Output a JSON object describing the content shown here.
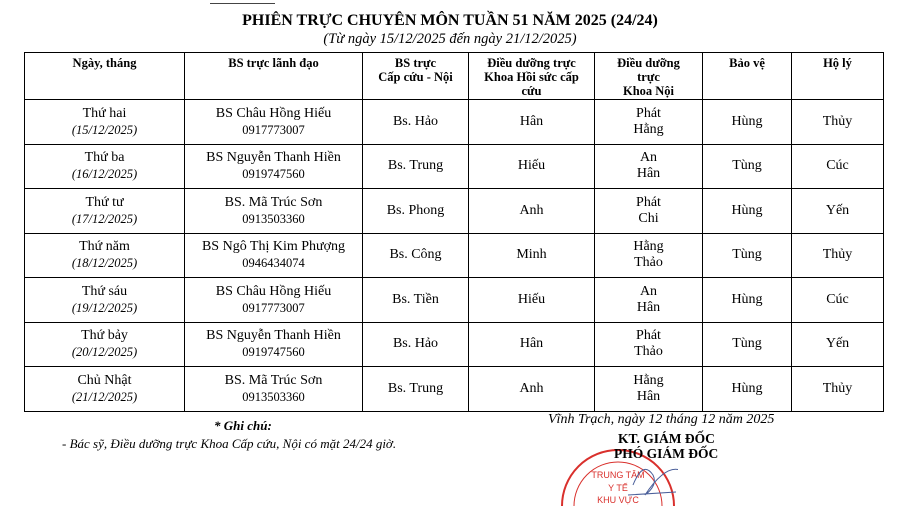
{
  "title": "PHIÊN TRỰC CHUYÊN MÔN TUẦN 51 NĂM 2025 (24/24)",
  "subtitle": "(Từ ngày 15/12/2025 đến ngày 21/12/2025)",
  "headers": [
    "Ngày, tháng",
    "BS trực lãnh đạo",
    "BS trực\nCấp cứu - Nội",
    "Điều dưỡng trực\nKhoa Hồi sức cấp\ncứu",
    "Điều dưỡng\ntrực\nKhoa Nội",
    "Bảo vệ",
    "Hộ lý"
  ],
  "rows": [
    {
      "day": "Thứ hai",
      "date": "(15/12/2025)",
      "leader": "BS Châu Hồng Hiếu",
      "phone": "0917773007",
      "er": "Bs. Hảo",
      "icu": "Hân",
      "nurse1": "Phát",
      "nurse2": "Hằng",
      "guard": "Hùng",
      "aide": "Thủy"
    },
    {
      "day": "Thứ ba",
      "date": "(16/12/2025)",
      "leader": "BS Nguyễn Thanh Hiền",
      "phone": "0919747560",
      "er": "Bs. Trung",
      "icu": "Hiếu",
      "nurse1": "An",
      "nurse2": "Hân",
      "guard": "Tùng",
      "aide": "Cúc"
    },
    {
      "day": "Thứ tư",
      "date": "(17/12/2025)",
      "leader": "BS. Mã Trúc Sơn",
      "phone": "0913503360",
      "er": "Bs. Phong",
      "icu": "Anh",
      "nurse1": "Phát",
      "nurse2": "Chi",
      "guard": "Hùng",
      "aide": "Yến"
    },
    {
      "day": "Thứ năm",
      "date": "(18/12/2025)",
      "leader": "BS Ngô Thị Kim Phượng",
      "phone": "0946434074",
      "er": "Bs. Công",
      "icu": "Minh",
      "nurse1": "Hằng",
      "nurse2": "Thảo",
      "guard": "Tùng",
      "aide": "Thủy"
    },
    {
      "day": "Thứ sáu",
      "date": "(19/12/2025)",
      "leader": "BS Châu Hồng Hiếu",
      "phone": "0917773007",
      "er": "Bs. Tiền",
      "icu": "Hiếu",
      "nurse1": "An",
      "nurse2": "Hân",
      "guard": "Hùng",
      "aide": "Cúc"
    },
    {
      "day": "Thứ bảy",
      "date": "(20/12/2025)",
      "leader": "BS Nguyễn Thanh Hiền",
      "phone": "0919747560",
      "er": "Bs. Hảo",
      "icu": "Hân",
      "nurse1": "Phát",
      "nurse2": "Thảo",
      "guard": "Tùng",
      "aide": "Yến"
    },
    {
      "day": "Chủ Nhật",
      "date": "(21/12/2025)",
      "leader": "BS. Mã Trúc Sơn",
      "phone": "0913503360",
      "er": "Bs. Trung",
      "icu": "Anh",
      "nurse1": "Hằng",
      "nurse2": "Hân",
      "guard": "Hùng",
      "aide": "Thủy"
    }
  ],
  "note_title": "* Ghi chú:",
  "note": "- Bác sỹ, Điều dưỡng trực Khoa Cấp cứu, Nội có mặt 24/24 giờ.",
  "place_date": "Vĩnh Trạch, ngày 12 tháng 12 năm 2025",
  "signer_line1": "KT. GIÁM ĐỐC",
  "signer_line2": "PHÓ GIÁM ĐỐC",
  "stamp_text": [
    "TRUNG TÂM",
    "Y TẾ",
    "KHU VỰC"
  ],
  "stamp_color": "#d9302c"
}
